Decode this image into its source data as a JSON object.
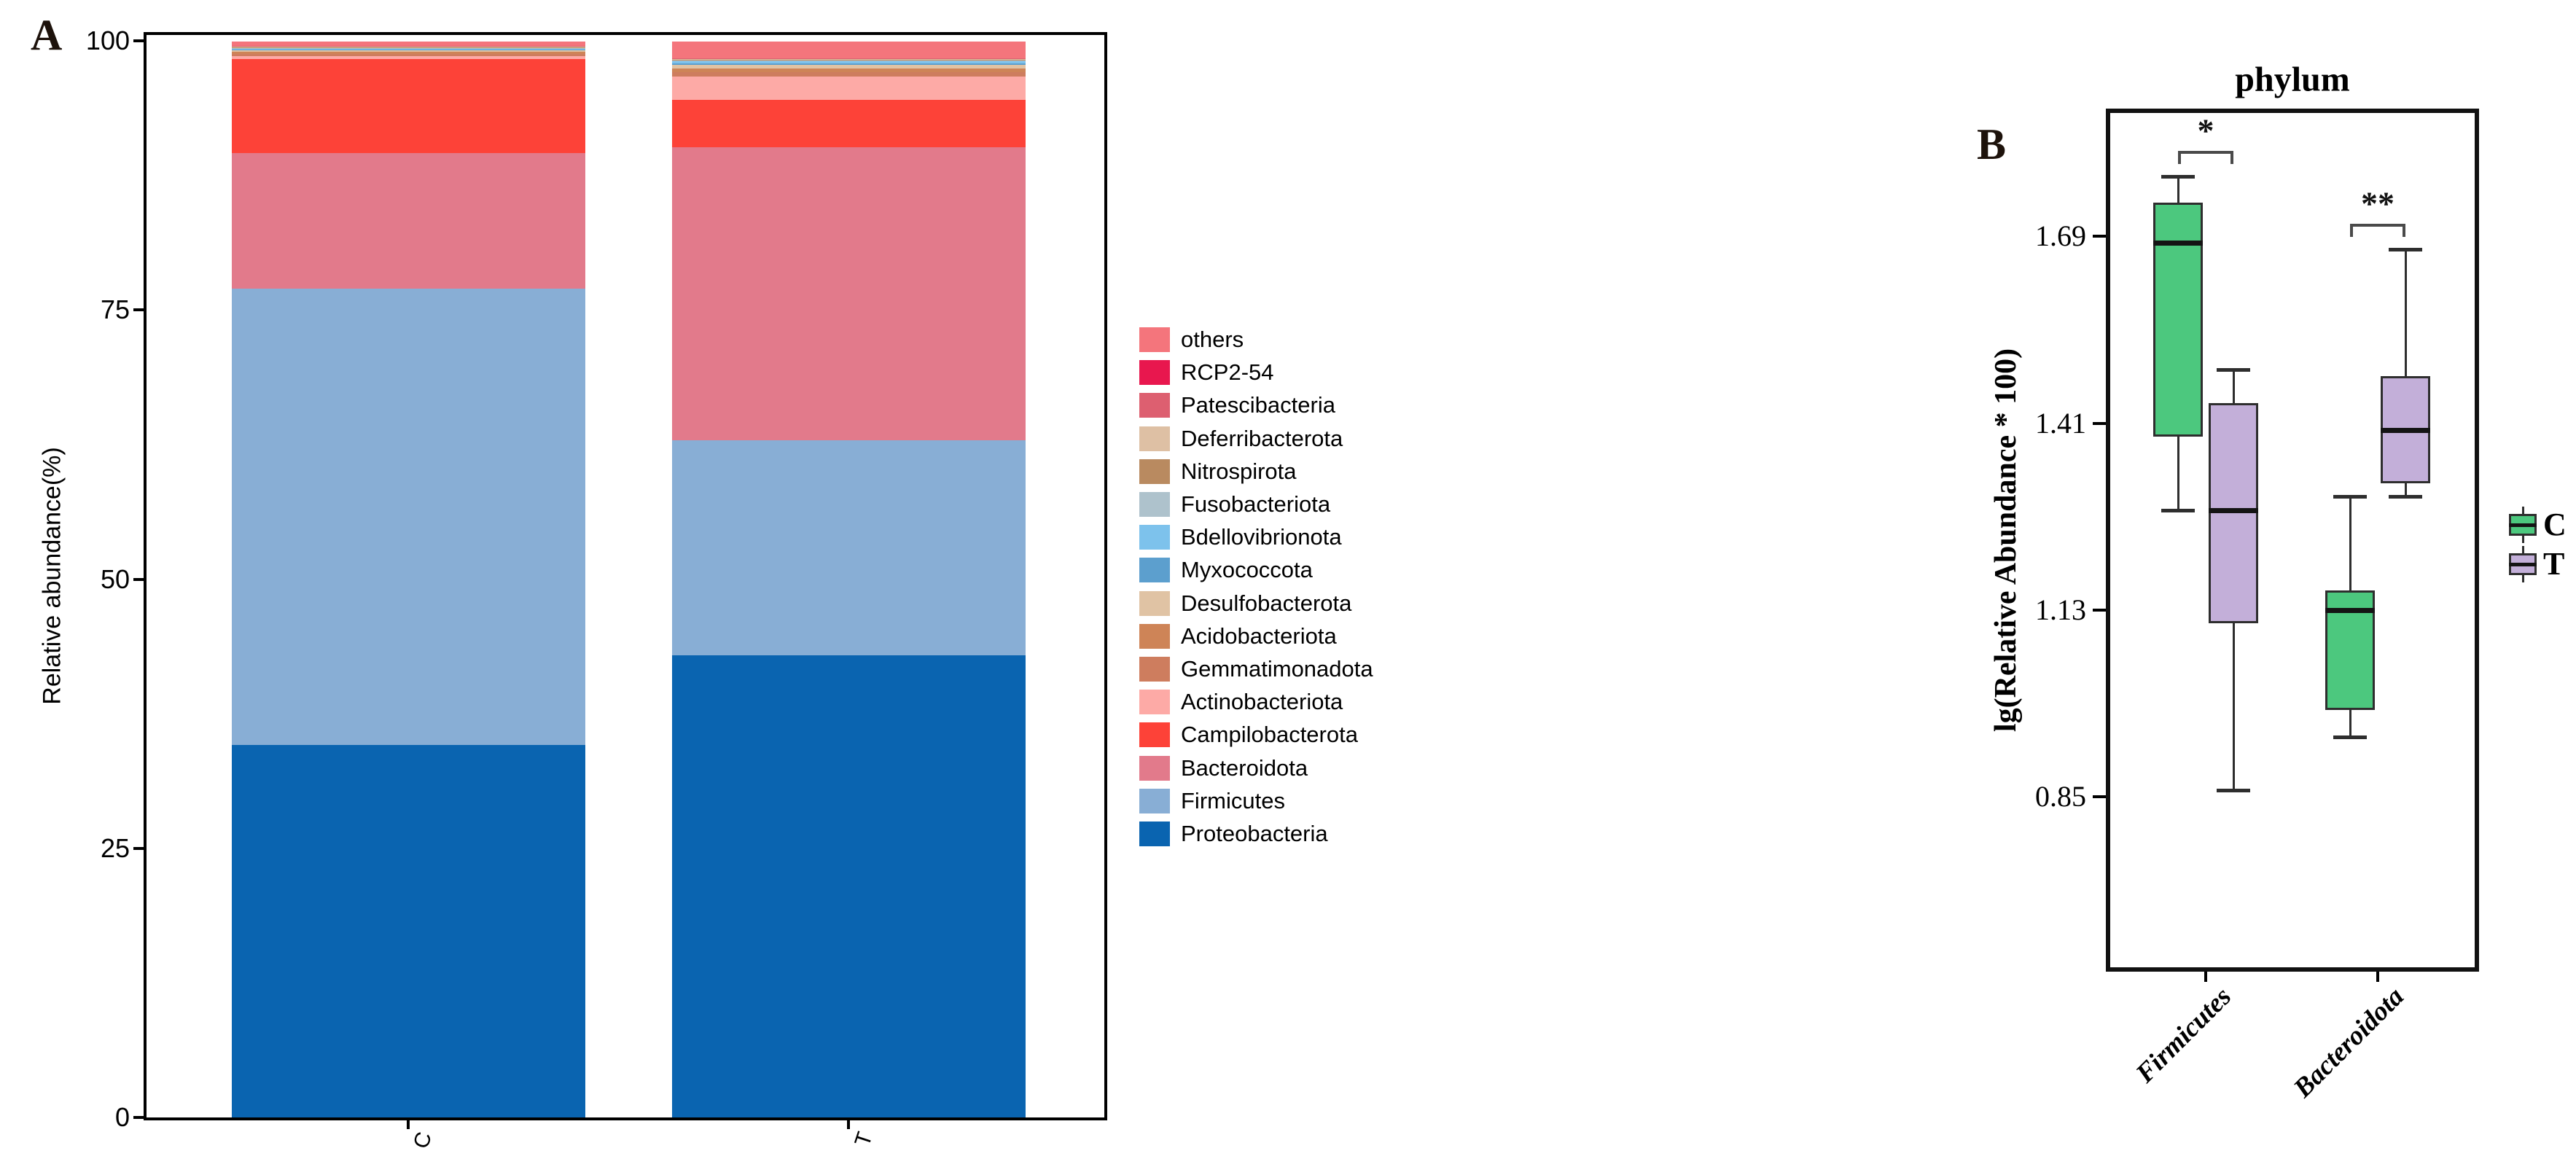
{
  "figure": {
    "background": "#ffffff",
    "panel_a_label": "A",
    "panel_b_label": "B"
  },
  "chart_data": [
    {
      "type": "bar",
      "stacked": true,
      "panel_label": "A",
      "title": "",
      "xlabel": "",
      "ylabel": "Relative abundance(%)",
      "ylim": [
        0,
        100
      ],
      "yticks": [
        0,
        25,
        50,
        75,
        100
      ],
      "grid": false,
      "categories": [
        "C",
        "T"
      ],
      "series": [
        {
          "name": "Proteobacteria",
          "color": "#0A64B0",
          "values": [
            34.6,
            42.9
          ]
        },
        {
          "name": "Firmicutes",
          "color": "#88AED5",
          "values": [
            42.4,
            20.0
          ]
        },
        {
          "name": "Bacteroidota",
          "color": "#E27A8B",
          "values": [
            12.6,
            27.2
          ]
        },
        {
          "name": "Campilobacterota",
          "color": "#FD4238",
          "values": [
            8.7,
            4.4
          ]
        },
        {
          "name": "Actinobacteriota",
          "color": "#FDAAA6",
          "values": [
            0.3,
            2.2
          ]
        },
        {
          "name": "Gemmatimonadota",
          "color": "#CE7D5E",
          "values": [
            0.2,
            0.38
          ]
        },
        {
          "name": "Acidobacteriota",
          "color": "#CE8457",
          "values": [
            0.2,
            0.33
          ]
        },
        {
          "name": "Desulfobacterota",
          "color": "#E0C3A4",
          "values": [
            0.15,
            0.33
          ]
        },
        {
          "name": "Myxococcota",
          "color": "#5C9FCE",
          "values": [
            0.06,
            0.15
          ]
        },
        {
          "name": "Bdellovibrionota",
          "color": "#7DC2EC",
          "values": [
            0.06,
            0.2
          ]
        },
        {
          "name": "Fusobacteriota",
          "color": "#AEC2CC",
          "values": [
            0.05,
            0.12
          ]
        },
        {
          "name": "Nitrospirota",
          "color": "#B98A60",
          "values": [
            0.05,
            0.04
          ]
        },
        {
          "name": "Deferribacterota",
          "color": "#DEC0A4",
          "values": [
            0.07,
            0.06
          ]
        },
        {
          "name": "Patescibacteria",
          "color": "#DD5F70",
          "values": [
            0.07,
            0.05
          ]
        },
        {
          "name": "RCP2-54",
          "color": "#E8174E",
          "values": [
            0.05,
            0.04
          ]
        },
        {
          "name": "others",
          "color": "#F4757C",
          "values": [
            0.4,
            1.55
          ]
        }
      ],
      "legend_position": "right",
      "legend_top_to_bottom": [
        "others",
        "RCP2-54",
        "Patescibacteria",
        "Deferribacterota",
        "Nitrospirota",
        "Fusobacteriota",
        "Bdellovibrionota",
        "Myxococcota",
        "Desulfobacterota",
        "Acidobacteriota",
        "Gemmatimonadota",
        "Actinobacteriota",
        "Campilobacterota",
        "Bacteroidota",
        "Firmicutes",
        "Proteobacteria"
      ]
    },
    {
      "type": "box",
      "panel_label": "B",
      "title": "phylum",
      "xlabel": "",
      "ylabel": "lg(Relative Abundance * 100)",
      "ylim": [
        0.58,
        1.87
      ],
      "yticks": [
        0.85,
        1.13,
        1.41,
        1.69
      ],
      "grid": false,
      "groups": [
        "Firmicutes",
        "Bacteroidota"
      ],
      "series": [
        {
          "name": "C",
          "color": "#4CC87E",
          "boxes": [
            {
              "group": "Firmicutes",
              "whisker_low": 1.28,
              "q1": 1.39,
              "median": 1.68,
              "q3": 1.74,
              "whisker_high": 1.78
            },
            {
              "group": "Bacteroidota",
              "whisker_low": 0.94,
              "q1": 0.98,
              "median": 1.13,
              "q3": 1.16,
              "whisker_high": 1.3
            }
          ]
        },
        {
          "name": "T",
          "color": "#C3AFD9",
          "boxes": [
            {
              "group": "Firmicutes",
              "whisker_low": 0.86,
              "q1": 1.11,
              "median": 1.28,
              "q3": 1.44,
              "whisker_high": 1.49
            },
            {
              "group": "Bacteroidota",
              "whisker_low": 1.3,
              "q1": 1.32,
              "median": 1.4,
              "q3": 1.48,
              "whisker_high": 1.67
            }
          ]
        }
      ],
      "significance": [
        {
          "group": "Firmicutes",
          "label": "*"
        },
        {
          "group": "Bacteroidota",
          "label": "**"
        }
      ],
      "legend_position": "right",
      "legend": [
        "C",
        "T"
      ]
    }
  ]
}
